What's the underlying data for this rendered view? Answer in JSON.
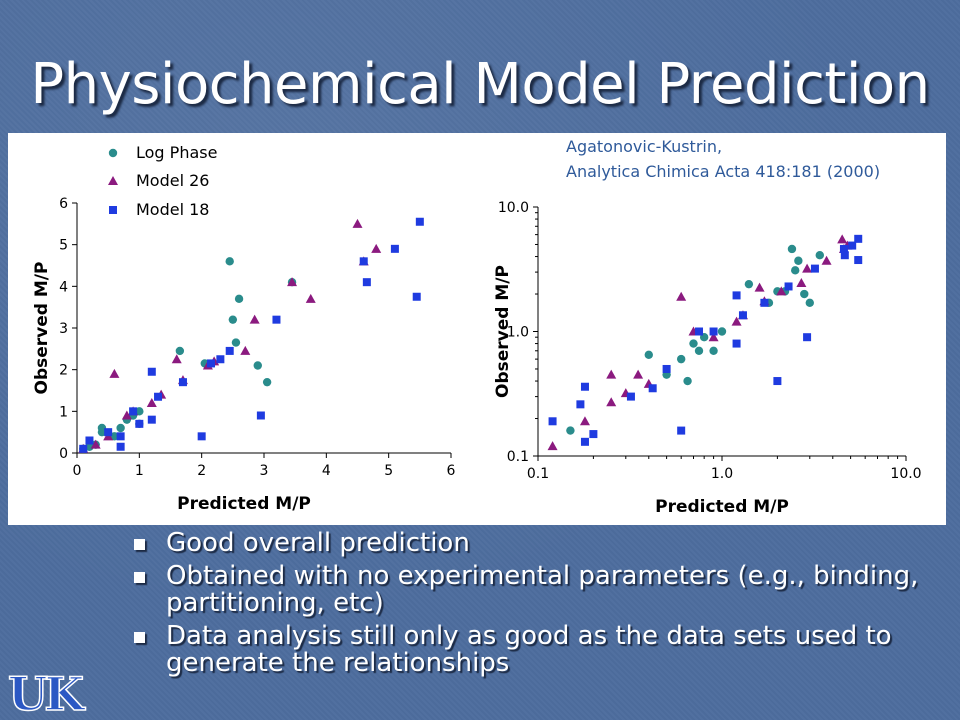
{
  "slide": {
    "title": "Physiochemical Model Prediction",
    "citation_line1": "Agatonovic-Kustrin,",
    "citation_line2": "Analytica Chimica Acta 418:181 (2000)",
    "bullets": [
      "Good overall prediction",
      "Obtained with no experimental parameters (e.g., binding, partitioning, etc)",
      "Data analysis still only as good as the data sets used to generate the relationships"
    ],
    "logo_text": "UK"
  },
  "colors": {
    "background": "#4d6d9e",
    "log_phase": "#2a8c8c",
    "model_26": "#8b1a7f",
    "model_18": "#1f3be0"
  },
  "chart_data": [
    {
      "type": "scatter",
      "title": "",
      "xlabel": "Predicted M/P",
      "ylabel": "Observed M/P",
      "xlim": [
        0,
        6
      ],
      "ylim": [
        0,
        6
      ],
      "xticks": [
        "0",
        "1",
        "2",
        "3",
        "4",
        "5",
        "6"
      ],
      "yticks": [
        "0",
        "1",
        "2",
        "3",
        "4",
        "5",
        "6"
      ],
      "legend_position": "top-left",
      "series": [
        {
          "name": "Log Phase",
          "marker": "circle",
          "points": [
            [
              0.1,
              0.1
            ],
            [
              0.2,
              0.15
            ],
            [
              0.3,
              0.2
            ],
            [
              0.4,
              0.5
            ],
            [
              0.4,
              0.6
            ],
            [
              0.6,
              0.4
            ],
            [
              0.7,
              0.6
            ],
            [
              0.8,
              0.8
            ],
            [
              0.9,
              0.9
            ],
            [
              1.0,
              0.7
            ],
            [
              1.0,
              1.0
            ],
            [
              1.65,
              2.45
            ],
            [
              2.45,
              4.6
            ],
            [
              2.5,
              3.2
            ],
            [
              2.6,
              3.7
            ],
            [
              2.9,
              2.1
            ],
            [
              3.05,
              1.7
            ],
            [
              3.45,
              4.1
            ],
            [
              2.05,
              2.15
            ],
            [
              2.55,
              2.65
            ]
          ]
        },
        {
          "name": "Model 26",
          "marker": "triangle",
          "points": [
            [
              0.1,
              0.1
            ],
            [
              0.3,
              0.2
            ],
            [
              0.5,
              0.4
            ],
            [
              0.6,
              1.9
            ],
            [
              0.8,
              0.9
            ],
            [
              0.9,
              1.0
            ],
            [
              1.2,
              1.2
            ],
            [
              1.35,
              1.4
            ],
            [
              1.6,
              2.25
            ],
            [
              1.7,
              1.75
            ],
            [
              2.1,
              2.1
            ],
            [
              2.2,
              2.2
            ],
            [
              2.7,
              2.45
            ],
            [
              2.85,
              3.2
            ],
            [
              3.45,
              4.1
            ],
            [
              3.75,
              3.7
            ],
            [
              4.5,
              5.5
            ],
            [
              4.6,
              4.6
            ],
            [
              4.8,
              4.9
            ]
          ]
        },
        {
          "name": "Model 18",
          "marker": "square",
          "points": [
            [
              0.1,
              0.1
            ],
            [
              0.2,
              0.3
            ],
            [
              0.5,
              0.5
            ],
            [
              0.7,
              0.4
            ],
            [
              0.7,
              0.15
            ],
            [
              0.9,
              1.0
            ],
            [
              1.0,
              0.7
            ],
            [
              1.2,
              1.95
            ],
            [
              1.2,
              0.8
            ],
            [
              1.3,
              1.35
            ],
            [
              1.7,
              1.7
            ],
            [
              2.0,
              0.4
            ],
            [
              2.15,
              2.15
            ],
            [
              2.3,
              2.25
            ],
            [
              2.45,
              2.45
            ],
            [
              2.95,
              0.9
            ],
            [
              3.2,
              3.2
            ],
            [
              4.6,
              4.6
            ],
            [
              4.65,
              4.1
            ],
            [
              5.1,
              4.9
            ],
            [
              5.45,
              3.75
            ],
            [
              5.5,
              5.55
            ]
          ]
        }
      ]
    },
    {
      "type": "scatter",
      "title": "",
      "xlabel": "Predicted M/P",
      "ylabel": "Observed M/P",
      "scale": "log",
      "xlim": [
        0.1,
        10.0
      ],
      "ylim": [
        0.1,
        10.0
      ],
      "xticks": [
        "0.1",
        "1.0",
        "10.0"
      ],
      "yticks": [
        "0.1",
        "1.0",
        "10.0"
      ],
      "series": [
        {
          "name": "Log Phase",
          "marker": "circle",
          "points": [
            [
              0.15,
              0.16
            ],
            [
              0.4,
              0.65
            ],
            [
              0.5,
              0.45
            ],
            [
              0.6,
              0.6
            ],
            [
              0.65,
              0.4
            ],
            [
              0.7,
              0.8
            ],
            [
              0.75,
              0.7
            ],
            [
              0.8,
              0.9
            ],
            [
              0.9,
              0.7
            ],
            [
              1.0,
              1.0
            ],
            [
              1.4,
              2.4
            ],
            [
              1.8,
              1.7
            ],
            [
              2.2,
              2.1
            ],
            [
              2.4,
              4.6
            ],
            [
              2.6,
              3.7
            ],
            [
              2.5,
              3.1
            ],
            [
              2.8,
              2.0
            ],
            [
              3.0,
              1.7
            ],
            [
              3.4,
              4.1
            ],
            [
              2.0,
              2.1
            ]
          ]
        },
        {
          "name": "Model 26",
          "marker": "triangle",
          "points": [
            [
              0.12,
              0.12
            ],
            [
              0.18,
              0.19
            ],
            [
              0.25,
              0.27
            ],
            [
              0.25,
              0.45
            ],
            [
              0.3,
              0.32
            ],
            [
              0.35,
              0.45
            ],
            [
              0.4,
              0.38
            ],
            [
              0.6,
              1.9
            ],
            [
              0.7,
              1.0
            ],
            [
              0.9,
              0.9
            ],
            [
              1.2,
              1.2
            ],
            [
              1.3,
              1.35
            ],
            [
              1.6,
              2.25
            ],
            [
              1.7,
              1.75
            ],
            [
              2.1,
              2.1
            ],
            [
              2.7,
              2.45
            ],
            [
              2.9,
              3.2
            ],
            [
              3.7,
              3.7
            ],
            [
              4.5,
              5.5
            ],
            [
              4.6,
              4.6
            ],
            [
              4.8,
              4.9
            ]
          ]
        },
        {
          "name": "Model 18",
          "marker": "square",
          "points": [
            [
              0.12,
              0.19
            ],
            [
              0.17,
              0.26
            ],
            [
              0.18,
              0.36
            ],
            [
              0.18,
              0.13
            ],
            [
              0.2,
              0.15
            ],
            [
              0.32,
              0.3
            ],
            [
              0.42,
              0.35
            ],
            [
              0.5,
              0.5
            ],
            [
              0.6,
              0.16
            ],
            [
              0.75,
              1.0
            ],
            [
              0.9,
              1.0
            ],
            [
              1.2,
              1.95
            ],
            [
              1.2,
              0.8
            ],
            [
              1.3,
              1.35
            ],
            [
              1.7,
              1.7
            ],
            [
              2.0,
              0.4
            ],
            [
              2.3,
              2.3
            ],
            [
              2.9,
              0.9
            ],
            [
              3.2,
              3.2
            ],
            [
              4.6,
              4.6
            ],
            [
              4.65,
              4.1
            ],
            [
              5.1,
              4.9
            ],
            [
              5.5,
              3.75
            ],
            [
              5.5,
              5.55
            ]
          ]
        }
      ]
    }
  ]
}
